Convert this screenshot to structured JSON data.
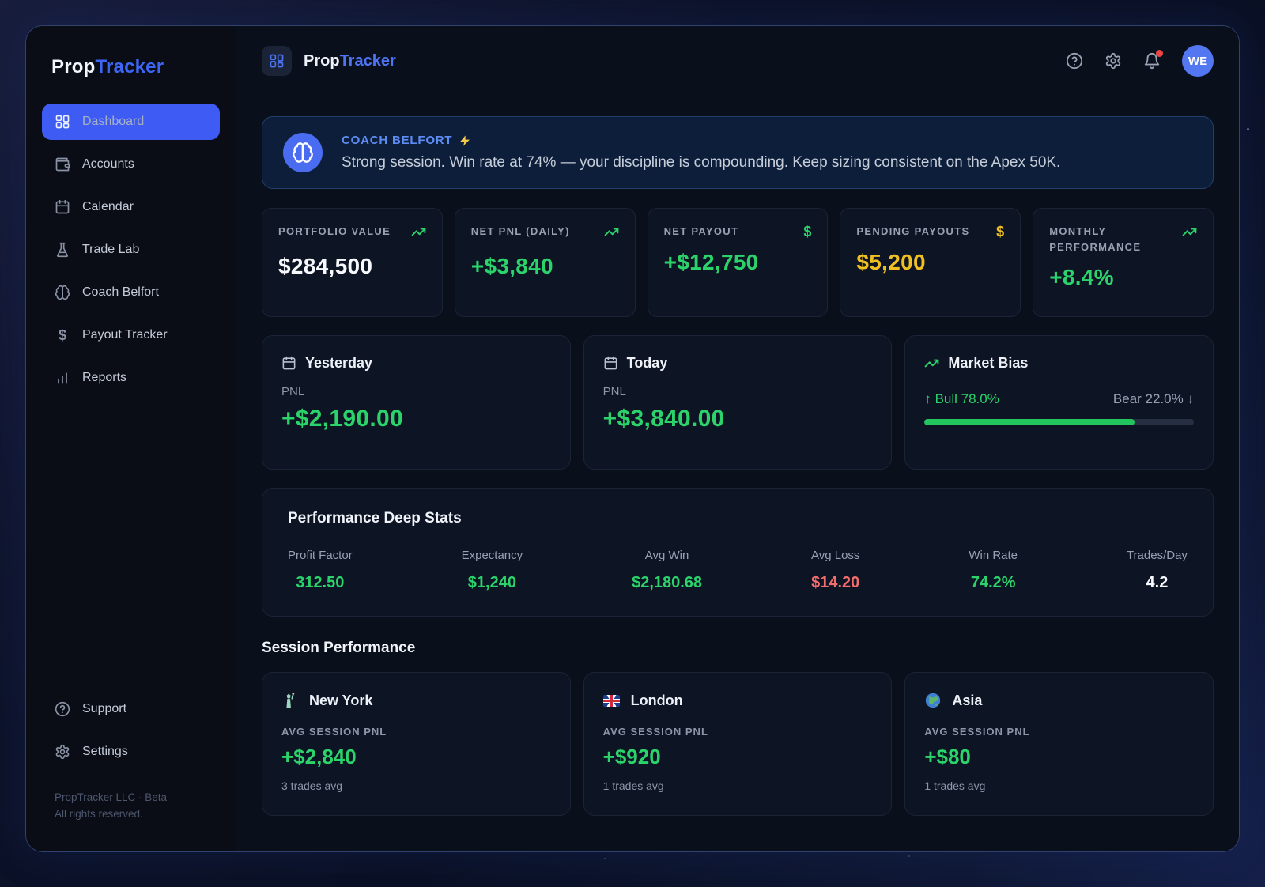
{
  "brand": {
    "part1": "Prop",
    "part2": "Tracker"
  },
  "sidebar": {
    "items": [
      {
        "icon": "layout-dashboard-icon",
        "label": "Dashboard",
        "active": true
      },
      {
        "icon": "wallet-icon",
        "label": "Accounts",
        "active": false
      },
      {
        "icon": "calendar-icon",
        "label": "Calendar",
        "active": false
      },
      {
        "icon": "flask-icon",
        "label": "Trade Lab",
        "active": false
      },
      {
        "icon": "brain-icon",
        "label": "Coach Belfort",
        "active": false
      },
      {
        "icon": "dollar-icon",
        "label": "Payout Tracker",
        "active": false
      },
      {
        "icon": "bar-chart-icon",
        "label": "Reports",
        "active": false
      }
    ],
    "support_label": "Support",
    "settings_label": "Settings",
    "footer_line1": "PropTracker LLC · Beta",
    "footer_line2": "All rights reserved."
  },
  "topbar": {
    "brand1": "Prop",
    "brand2": "Tracker",
    "icons": [
      "help-circle-icon",
      "gear-icon",
      "bell-icon"
    ],
    "avatar_initials": "WE"
  },
  "coach": {
    "title": "COACH BELFORT",
    "title_icon": "lightning-bolt-icon",
    "avatar_icon": "brain-icon",
    "message": "Strong session. Win rate at 74% — your discipline is compounding. Keep sizing consistent on the Apex 50K."
  },
  "stats": [
    {
      "label": "PORTFOLIO VALUE",
      "value": "$284,500",
      "icon": "trending-up-icon",
      "icon_color": "#2bd36a",
      "value_color": "#f6f8fb"
    },
    {
      "label": "NET PNL (DAILY)",
      "value": "+$3,840",
      "icon": "trending-up-icon",
      "icon_color": "#2bd36a",
      "value_color": "#2bd36a"
    },
    {
      "label": "NET PAYOUT",
      "value": "+$12,750",
      "icon": "dollar-icon",
      "icon_color": "#2bd36a",
      "value_color": "#2bd36a"
    },
    {
      "label": "PENDING PAYOUTS",
      "value": "$5,200",
      "icon": "dollar-icon",
      "icon_color": "#f0c022",
      "value_color": "#f0c022"
    },
    {
      "label": "MONTHLY PERFORMANCE",
      "value": "+8.4%",
      "icon": "trending-up-icon",
      "icon_color": "#2bd36a",
      "value_color": "#2bd36a"
    }
  ],
  "day_cards": [
    {
      "icon": "calendar-icon",
      "title": "Yesterday",
      "pnl_label": "PNL",
      "value": "+$2,190.00"
    },
    {
      "icon": "calendar-icon",
      "title": "Today",
      "pnl_label": "PNL",
      "value": "+$3,840.00"
    }
  ],
  "market_bias": {
    "icon": "trending-up-icon",
    "title": "Market Bias",
    "bull_arrow": "↑",
    "bull_text": "Bull 78.0%",
    "bear_text": "Bear 22.0%",
    "bear_arrow": "↓",
    "bull_pct": 78,
    "bar_color": "#22c55e"
  },
  "deep_stats": {
    "title": "Performance Deep Stats",
    "items": [
      {
        "label": "Profit Factor",
        "value": "312.50",
        "color": "#2bd36a"
      },
      {
        "label": "Expectancy",
        "value": "$1,240",
        "color": "#2bd36a"
      },
      {
        "label": "Avg Win",
        "value": "$2,180.68",
        "color": "#2bd36a"
      },
      {
        "label": "Avg Loss",
        "value": "$14.20",
        "color": "#f36d6d"
      },
      {
        "label": "Win Rate",
        "value": "74.2%",
        "color": "#2bd36a"
      },
      {
        "label": "Trades/Day",
        "value": "4.2",
        "color": "#f6f8fb"
      }
    ]
  },
  "sessions": {
    "title": "Session Performance",
    "cards": [
      {
        "icon": "statue-of-liberty-icon",
        "name": "New York",
        "label": "AVG SESSION PNL",
        "value": "+$2,840",
        "sub": "3 trades avg"
      },
      {
        "icon": "uk-flag-icon",
        "name": "London",
        "label": "AVG SESSION PNL",
        "value": "+$920",
        "sub": "1 trades avg"
      },
      {
        "icon": "globe-asia-icon",
        "name": "Asia",
        "label": "AVG SESSION PNL",
        "value": "+$80",
        "sub": "1 trades avg"
      }
    ]
  },
  "colors": {
    "accent_blue": "#3e5cf4",
    "green": "#2bd36a",
    "yellow": "#f0c022",
    "red": "#f36d6d",
    "banner_blue": "#5d8cf2"
  }
}
